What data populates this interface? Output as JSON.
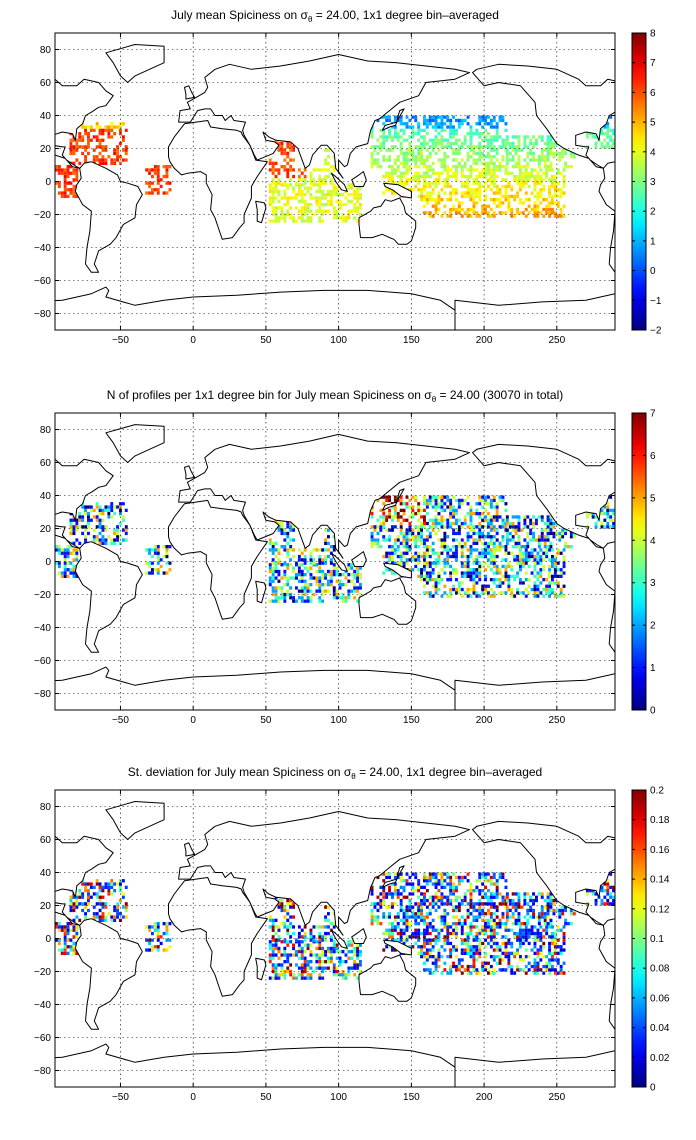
{
  "chart_data": [
    {
      "type": "heatmap",
      "title_pre": "July mean Spiciness on σ",
      "title_sub": "θ",
      "title_post": " = 24.00, 1x1 degree bin–averaged",
      "xlim": [
        -95,
        290
      ],
      "ylim": [
        -90,
        90
      ],
      "xticks": [
        -50,
        0,
        50,
        100,
        150,
        200,
        250
      ],
      "yticks": [
        -80,
        -60,
        -40,
        -20,
        0,
        20,
        40,
        60,
        80
      ],
      "grid": true,
      "colormap": "jet",
      "clim": [
        -2,
        8
      ],
      "cticks": [
        -2,
        -1,
        0,
        1,
        2,
        3,
        4,
        5,
        6,
        7,
        8
      ],
      "cticklabels": [
        "−2",
        "−1",
        "0",
        "1",
        "2",
        "3",
        "4",
        "5",
        "6",
        "7",
        "8"
      ],
      "field": "mean"
    },
    {
      "type": "heatmap",
      "title_pre": "N of profiles per 1x1 degree bin for July mean Spiciness on σ",
      "title_sub": "θ",
      "title_post": " = 24.00 (30070 in total)",
      "xlim": [
        -95,
        290
      ],
      "ylim": [
        -90,
        90
      ],
      "xticks": [
        -50,
        0,
        50,
        100,
        150,
        200,
        250
      ],
      "yticks": [
        -80,
        -60,
        -40,
        -20,
        0,
        20,
        40,
        60,
        80
      ],
      "grid": true,
      "colormap": "jet",
      "clim": [
        0,
        7
      ],
      "cticks": [
        0,
        1,
        2,
        3,
        4,
        5,
        6,
        7
      ],
      "cticklabels": [
        "0",
        "1",
        "2",
        "3",
        "4",
        "5",
        "6",
        "7"
      ],
      "field": "count"
    },
    {
      "type": "heatmap",
      "title_pre": "St. deviation for July mean Spiciness on σ",
      "title_sub": "θ",
      "title_post": " = 24.00, 1x1 degree bin–averaged",
      "xlim": [
        -95,
        290
      ],
      "ylim": [
        -90,
        90
      ],
      "xticks": [
        -50,
        0,
        50,
        100,
        150,
        200,
        250
      ],
      "yticks": [
        -80,
        -60,
        -40,
        -20,
        0,
        20,
        40,
        60,
        80
      ],
      "grid": true,
      "colormap": "jet",
      "clim": [
        0,
        0.2
      ],
      "cticks": [
        0,
        0.02,
        0.04,
        0.06,
        0.08,
        0.1,
        0.12,
        0.14,
        0.16,
        0.18,
        0.2
      ],
      "cticklabels": [
        "0",
        "0.02",
        "0.04",
        "0.06",
        "0.08",
        "0.1",
        "0.12",
        "0.14",
        "0.16",
        "0.18",
        "0.2"
      ],
      "field": "std"
    }
  ]
}
